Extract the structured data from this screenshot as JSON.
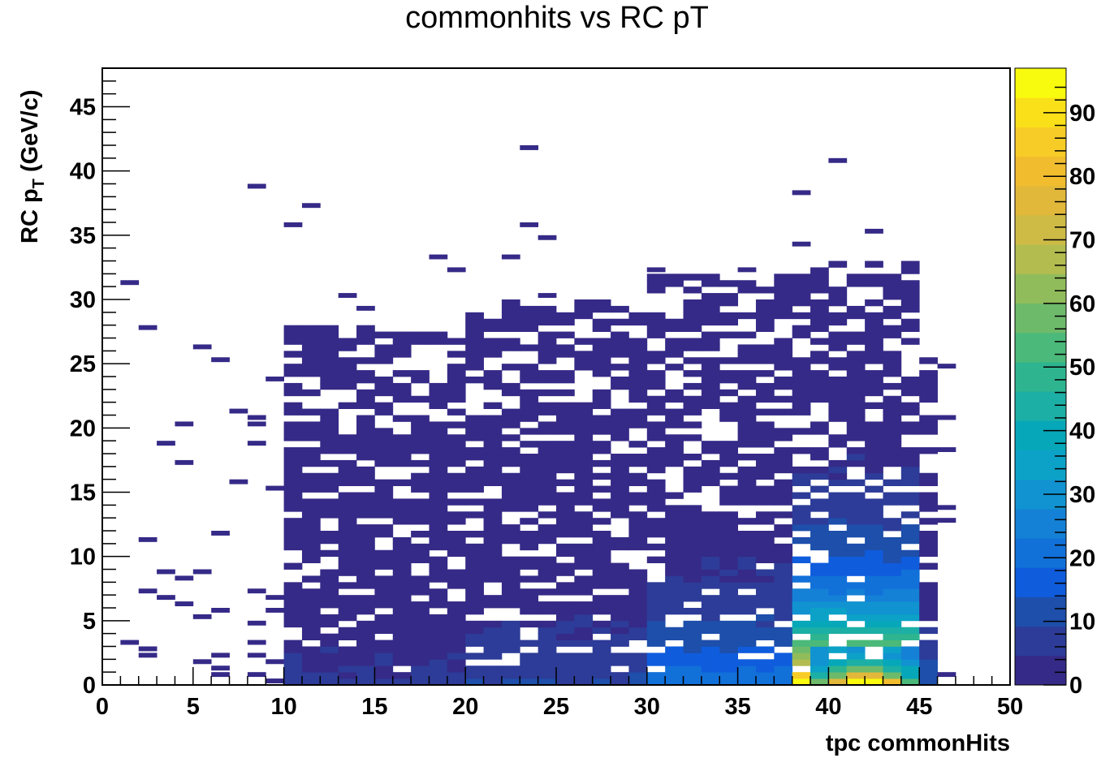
{
  "chart_data": {
    "type": "heatmap",
    "title": "commonhits vs RC pT",
    "xlabel": "tpc commonHits",
    "ylabel_main": "RC p",
    "ylabel_sub": "T",
    "ylabel_unit": " (GeV/c)",
    "xlim": [
      0,
      50
    ],
    "ylim": [
      0,
      48
    ],
    "x_ticks": [
      "0",
      "5",
      "10",
      "15",
      "20",
      "25",
      "30",
      "35",
      "40",
      "45",
      "50"
    ],
    "y_ticks": [
      "0",
      "5",
      "10",
      "15",
      "20",
      "25",
      "30",
      "35",
      "40",
      "45"
    ],
    "colorbar": {
      "min": 0,
      "max": 97,
      "ticks": [
        "0",
        "10",
        "20",
        "30",
        "40",
        "50",
        "60",
        "70",
        "80",
        "90"
      ],
      "palette": "kBird"
    },
    "x_bins": {
      "min": 0,
      "max": 50,
      "n": 50
    },
    "y_bins": {
      "min": 0,
      "max": 48,
      "n": 96
    },
    "density_model": {
      "description": "approximate density estimated from image",
      "column_ranges": [
        {
          "x_from": 1,
          "x_to": 10,
          "ymax": 22,
          "peak": 3,
          "sparse": true
        },
        {
          "x_from": 10,
          "x_to": 20,
          "ymax": 28,
          "peak": 5,
          "sparse": false
        },
        {
          "x_from": 20,
          "x_to": 30,
          "ymax": 30,
          "peak": 9,
          "sparse": false
        },
        {
          "x_from": 30,
          "x_to": 38,
          "ymax": 32,
          "peak": 22,
          "sparse": false
        },
        {
          "x_from": 38,
          "x_to": 45,
          "ymax": 33,
          "peak": 97,
          "sparse": false
        },
        {
          "x_from": 45,
          "x_to": 46,
          "ymax": 26,
          "peak": 12,
          "sparse": false
        },
        {
          "x_from": 46,
          "x_to": 47,
          "ymax": 20,
          "peak": 2,
          "sparse": true
        }
      ],
      "hotspot": {
        "x_center": 42,
        "y_center": 0.8,
        "value": 97
      }
    },
    "grid": false,
    "legend": "colorbar-right"
  }
}
